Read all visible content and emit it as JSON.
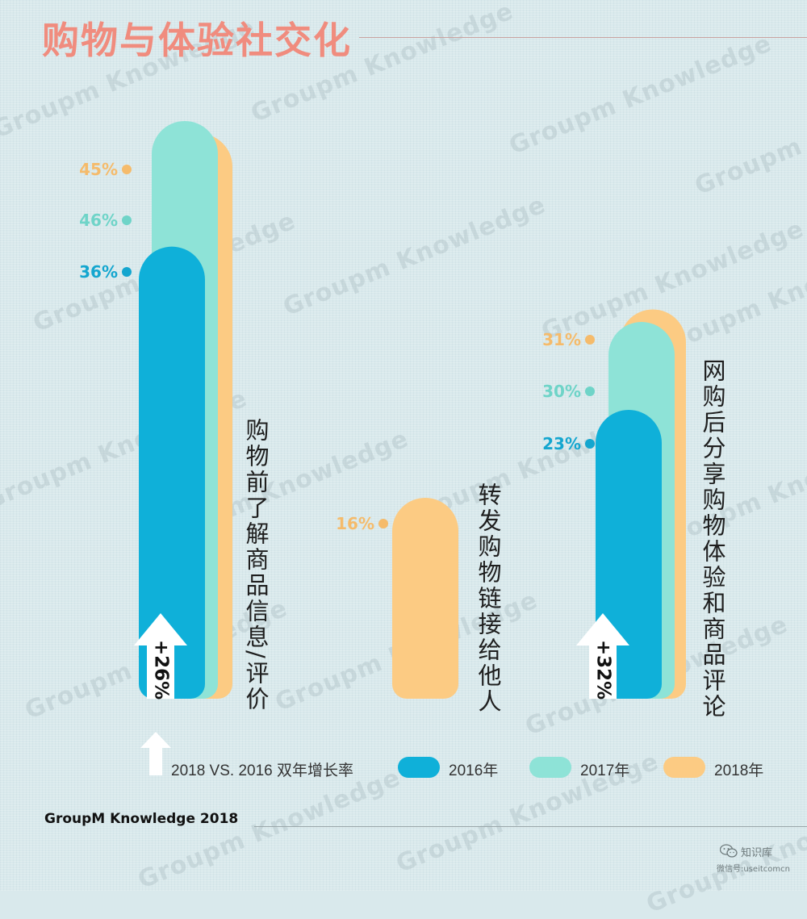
{
  "title": "购物与体验社交化",
  "source": "GroupM Knowledge 2018",
  "watermark_text": "Groupm Knowledge",
  "colors": {
    "2016": "#0fb0d9",
    "2017": "#8ee3d7",
    "2018": "#fccb83",
    "title": "#f08c7e",
    "label_2016": "#14a6cf",
    "label_2017": "#6fd4c8",
    "label_2018": "#f5bb6b"
  },
  "legend": {
    "growth_label": "2018 VS. 2016 双年增长率",
    "items": [
      "2016年",
      "2017年",
      "2018年"
    ]
  },
  "brand": {
    "name": "知识库",
    "sub": "微信号:useitcomcn",
    "icon": "wechat-icon"
  },
  "chart_data": {
    "type": "bar",
    "categories": [
      "购物前了解商品信息/评价",
      "转发购物链接给他人",
      "网购后分享购物体验和商品评论"
    ],
    "series": [
      {
        "name": "2016年",
        "values": [
          36,
          null,
          23
        ]
      },
      {
        "name": "2017年",
        "values": [
          46,
          null,
          30
        ]
      },
      {
        "name": "2018年",
        "values": [
          45,
          16,
          31
        ]
      }
    ],
    "value_labels": [
      [
        "45%",
        "46%",
        "36%"
      ],
      [
        "16%"
      ],
      [
        "31%",
        "30%",
        "23%"
      ]
    ],
    "growth_labels": [
      "+26%",
      null,
      "+32%"
    ],
    "ylim": [
      0,
      50
    ],
    "grid": false,
    "legend_position": "bottom"
  }
}
